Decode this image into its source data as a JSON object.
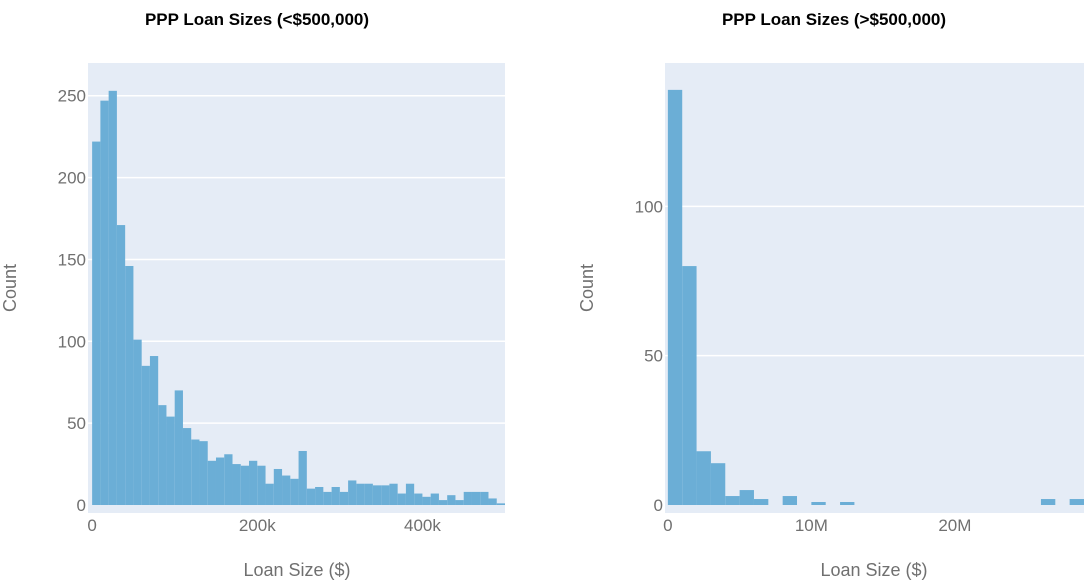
{
  "chart_data": [
    {
      "type": "bar",
      "title": "PPP Loan Sizes (<$500,000)",
      "xlabel": "Loan Size ($)",
      "ylabel": "Count",
      "color": "#6baed6",
      "plot_bg": "#e5ecf6",
      "grid": true,
      "xlim": [
        -5000,
        500000
      ],
      "ylim": [
        0,
        270
      ],
      "xticks": [
        0,
        200000,
        400000
      ],
      "xtick_labels": [
        "0",
        "200k",
        "400k"
      ],
      "yticks": [
        0,
        50,
        100,
        150,
        200,
        250
      ],
      "ytick_labels": [
        "0",
        "50",
        "100",
        "150",
        "200",
        "250"
      ],
      "bin_start": 0,
      "bin_width": 10000,
      "values": [
        222,
        247,
        253,
        171,
        146,
        101,
        85,
        91,
        61,
        54,
        70,
        47,
        40,
        39,
        27,
        29,
        31,
        25,
        24,
        27,
        24,
        13,
        22,
        18,
        16,
        33,
        10,
        11,
        8,
        11,
        8,
        15,
        13,
        13,
        12,
        12,
        13,
        7,
        13,
        7,
        5,
        7,
        3,
        6,
        3,
        8,
        8,
        8,
        4,
        1
      ]
    },
    {
      "type": "bar",
      "title": "PPP Loan Sizes (>$500,000)",
      "xlabel": "Loan Size ($)",
      "ylabel": "Count",
      "color": "#6baed6",
      "plot_bg": "#e5ecf6",
      "grid": true,
      "xlim": [
        -200000,
        29000000
      ],
      "ylim": [
        0,
        148
      ],
      "xticks": [
        0,
        10000000,
        20000000
      ],
      "xtick_labels": [
        "0",
        "10M",
        "20M"
      ],
      "yticks": [
        0,
        50,
        100
      ],
      "ytick_labels": [
        "0",
        "50",
        "100"
      ],
      "bin_start": 0,
      "bin_width": 1000000,
      "values": [
        139,
        80,
        18,
        14,
        3,
        5,
        2,
        0,
        3,
        0,
        1,
        0,
        1,
        0,
        0,
        0,
        0,
        0,
        0,
        0,
        0,
        0,
        0,
        0,
        0,
        0,
        2,
        0,
        2
      ]
    }
  ]
}
